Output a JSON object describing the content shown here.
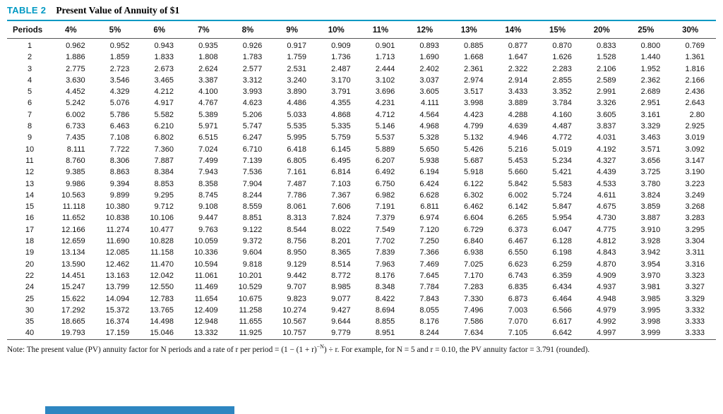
{
  "header": {
    "table_label": "TABLE 2",
    "title": "Present Value of Annuity of $1"
  },
  "colors": {
    "accent": "#0099c3",
    "barcolor": "#2e86c1"
  },
  "table": {
    "columns": [
      "Periods",
      "4%",
      "5%",
      "6%",
      "7%",
      "8%",
      "9%",
      "10%",
      "11%",
      "12%",
      "13%",
      "14%",
      "15%",
      "20%",
      "25%",
      "30%"
    ],
    "rows": [
      [
        "1",
        "0.962",
        "0.952",
        "0.943",
        "0.935",
        "0.926",
        "0.917",
        "0.909",
        "0.901",
        "0.893",
        "0.885",
        "0.877",
        "0.870",
        "0.833",
        "0.800",
        "0.769"
      ],
      [
        "2",
        "1.886",
        "1.859",
        "1.833",
        "1.808",
        "1.783",
        "1.759",
        "1.736",
        "1.713",
        "1.690",
        "1.668",
        "1.647",
        "1.626",
        "1.528",
        "1.440",
        "1.361"
      ],
      [
        "3",
        "2.775",
        "2.723",
        "2.673",
        "2.624",
        "2.577",
        "2.531",
        "2.487",
        "2.444",
        "2.402",
        "2.361",
        "2.322",
        "2.283",
        "2.106",
        "1.952",
        "1.816"
      ],
      [
        "4",
        "3.630",
        "3.546",
        "3.465",
        "3.387",
        "3.312",
        "3.240",
        "3.170",
        "3.102",
        "3.037",
        "2.974",
        "2.914",
        "2.855",
        "2.589",
        "2.362",
        "2.166"
      ],
      [
        "5",
        "4.452",
        "4.329",
        "4.212",
        "4.100",
        "3.993",
        "3.890",
        "3.791",
        "3.696",
        "3.605",
        "3.517",
        "3.433",
        "3.352",
        "2.991",
        "2.689",
        "2.436"
      ],
      [
        "6",
        "5.242",
        "5.076",
        "4.917",
        "4.767",
        "4.623",
        "4.486",
        "4.355",
        "4.231",
        "4.111",
        "3.998",
        "3.889",
        "3.784",
        "3.326",
        "2.951",
        "2.643"
      ],
      [
        "7",
        "6.002",
        "5.786",
        "5.582",
        "5.389",
        "5.206",
        "5.033",
        "4.868",
        "4.712",
        "4.564",
        "4.423",
        "4.288",
        "4.160",
        "3.605",
        "3.161",
        "2.80"
      ],
      [
        "8",
        "6.733",
        "6.463",
        "6.210",
        "5.971",
        "5.747",
        "5.535",
        "5.335",
        "5.146",
        "4.968",
        "4.799",
        "4.639",
        "4.487",
        "3.837",
        "3.329",
        "2.925"
      ],
      [
        "9",
        "7.435",
        "7.108",
        "6.802",
        "6.515",
        "6.247",
        "5.995",
        "5.759",
        "5.537",
        "5.328",
        "5.132",
        "4.946",
        "4.772",
        "4.031",
        "3.463",
        "3.019"
      ],
      [
        "10",
        "8.111",
        "7.722",
        "7.360",
        "7.024",
        "6.710",
        "6.418",
        "6.145",
        "5.889",
        "5.650",
        "5.426",
        "5.216",
        "5.019",
        "4.192",
        "3.571",
        "3.092"
      ],
      [
        "11",
        "8.760",
        "8.306",
        "7.887",
        "7.499",
        "7.139",
        "6.805",
        "6.495",
        "6.207",
        "5.938",
        "5.687",
        "5.453",
        "5.234",
        "4.327",
        "3.656",
        "3.147"
      ],
      [
        "12",
        "9.385",
        "8.863",
        "8.384",
        "7.943",
        "7.536",
        "7.161",
        "6.814",
        "6.492",
        "6.194",
        "5.918",
        "5.660",
        "5.421",
        "4.439",
        "3.725",
        "3.190"
      ],
      [
        "13",
        "9.986",
        "9.394",
        "8.853",
        "8.358",
        "7.904",
        "7.487",
        "7.103",
        "6.750",
        "6.424",
        "6.122",
        "5.842",
        "5.583",
        "4.533",
        "3.780",
        "3.223"
      ],
      [
        "14",
        "10.563",
        "9.899",
        "9.295",
        "8.745",
        "8.244",
        "7.786",
        "7.367",
        "6.982",
        "6.628",
        "6.302",
        "6.002",
        "5.724",
        "4.611",
        "3.824",
        "3.249"
      ],
      [
        "15",
        "11.118",
        "10.380",
        "9.712",
        "9.108",
        "8.559",
        "8.061",
        "7.606",
        "7.191",
        "6.811",
        "6.462",
        "6.142",
        "5.847",
        "4.675",
        "3.859",
        "3.268"
      ],
      [
        "16",
        "11.652",
        "10.838",
        "10.106",
        "9.447",
        "8.851",
        "8.313",
        "7.824",
        "7.379",
        "6.974",
        "6.604",
        "6.265",
        "5.954",
        "4.730",
        "3.887",
        "3.283"
      ],
      [
        "17",
        "12.166",
        "11.274",
        "10.477",
        "9.763",
        "9.122",
        "8.544",
        "8.022",
        "7.549",
        "7.120",
        "6.729",
        "6.373",
        "6.047",
        "4.775",
        "3.910",
        "3.295"
      ],
      [
        "18",
        "12.659",
        "11.690",
        "10.828",
        "10.059",
        "9.372",
        "8.756",
        "8.201",
        "7.702",
        "7.250",
        "6.840",
        "6.467",
        "6.128",
        "4.812",
        "3.928",
        "3.304"
      ],
      [
        "19",
        "13.134",
        "12.085",
        "11.158",
        "10.336",
        "9.604",
        "8.950",
        "8.365",
        "7.839",
        "7.366",
        "6.938",
        "6.550",
        "6.198",
        "4.843",
        "3.942",
        "3.311"
      ],
      [
        "20",
        "13.590",
        "12.462",
        "11.470",
        "10.594",
        "9.818",
        "9.129",
        "8.514",
        "7.963",
        "7.469",
        "7.025",
        "6.623",
        "6.259",
        "4.870",
        "3.954",
        "3.316"
      ],
      [
        "22",
        "14.451",
        "13.163",
        "12.042",
        "11.061",
        "10.201",
        "9.442",
        "8.772",
        "8.176",
        "7.645",
        "7.170",
        "6.743",
        "6.359",
        "4.909",
        "3.970",
        "3.323"
      ],
      [
        "24",
        "15.247",
        "13.799",
        "12.550",
        "11.469",
        "10.529",
        "9.707",
        "8.985",
        "8.348",
        "7.784",
        "7.283",
        "6.835",
        "6.434",
        "4.937",
        "3.981",
        "3.327"
      ],
      [
        "25",
        "15.622",
        "14.094",
        "12.783",
        "11.654",
        "10.675",
        "9.823",
        "9.077",
        "8.422",
        "7.843",
        "7.330",
        "6.873",
        "6.464",
        "4.948",
        "3.985",
        "3.329"
      ],
      [
        "30",
        "17.292",
        "15.372",
        "13.765",
        "12.409",
        "11.258",
        "10.274",
        "9.427",
        "8.694",
        "8.055",
        "7.496",
        "7.003",
        "6.566",
        "4.979",
        "3.995",
        "3.332"
      ],
      [
        "35",
        "18.665",
        "16.374",
        "14.498",
        "12.948",
        "11.655",
        "10.567",
        "9.644",
        "8.855",
        "8.176",
        "7.586",
        "7.070",
        "6.617",
        "4.992",
        "3.998",
        "3.333"
      ],
      [
        "40",
        "19.793",
        "17.159",
        "15.046",
        "13.332",
        "11.925",
        "10.757",
        "9.779",
        "8.951",
        "8.244",
        "7.634",
        "7.105",
        "6.642",
        "4.997",
        "3.999",
        "3.333"
      ]
    ]
  },
  "note": {
    "prefix": "Note: The present value (PV) annuity factor for N periods and a rate of r per period = (1 − (1 + r)",
    "exponent": "−N",
    "suffix": ") ÷ r. For example, for N = 5 and r = 0.10, the PV annuity factor = 3.791 (rounded)."
  }
}
